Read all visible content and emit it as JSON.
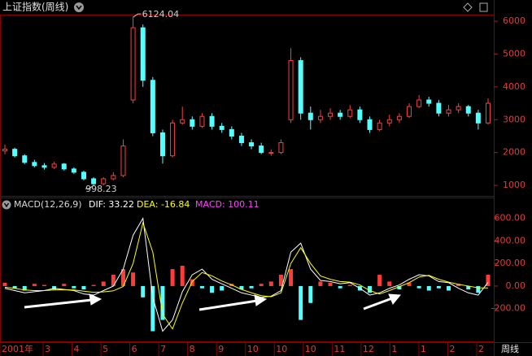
{
  "header": {
    "title": "上证指数(周线)"
  },
  "chart_data": [
    {
      "type": "candlestick",
      "up_color": "#ff3c3c",
      "down_color": "#54ffff",
      "ylim": [
        680,
        6200
      ],
      "yticks": [
        1000,
        2000,
        3000,
        4000,
        5000,
        6000
      ],
      "max_label": "6124.04",
      "min_label": "998.23",
      "open": [
        2050,
        2100,
        1900,
        1700,
        1600,
        1550,
        1650,
        1500,
        1400,
        1200,
        1050,
        1200,
        1300,
        3600,
        5800,
        4200,
        2600,
        1900,
        2900,
        3000,
        2800,
        3100,
        2800,
        2700,
        2500,
        2300,
        2200,
        2000,
        2000,
        3000,
        4800,
        3200,
        3000,
        3100,
        3200,
        3100,
        3300,
        3000,
        2700,
        2900,
        3000,
        3100,
        3400,
        3600,
        3500,
        3200,
        3300,
        3400,
        3200,
        2900
      ],
      "close": [
        2100,
        1900,
        1700,
        1600,
        1550,
        1650,
        1500,
        1400,
        1200,
        1050,
        1200,
        1300,
        2200,
        5800,
        4200,
        2600,
        1900,
        2900,
        3000,
        2800,
        3100,
        2800,
        2700,
        2500,
        2300,
        2200,
        2000,
        2000,
        2300,
        4800,
        3200,
        3000,
        3100,
        3200,
        3100,
        3300,
        3000,
        2700,
        2900,
        3000,
        3100,
        3400,
        3600,
        3500,
        3200,
        3300,
        3400,
        3200,
        2900,
        3500
      ],
      "high": [
        2250,
        2150,
        1950,
        1780,
        1680,
        1720,
        1680,
        1550,
        1450,
        1250,
        1250,
        1400,
        2400,
        6124.04,
        5900,
        4300,
        2700,
        3000,
        3400,
        3100,
        3200,
        3200,
        2900,
        2800,
        2600,
        2400,
        2300,
        2100,
        2400,
        5178,
        4900,
        3400,
        3300,
        3350,
        3300,
        3450,
        3400,
        3100,
        3000,
        3150,
        3200,
        3500,
        3750,
        3700,
        3600,
        3450,
        3500,
        3450,
        3300,
        3650
      ],
      "low": [
        1950,
        1850,
        1650,
        1550,
        1480,
        1500,
        1450,
        1350,
        1150,
        998.23,
        1000,
        1150,
        1250,
        3500,
        4000,
        2500,
        1664,
        1850,
        2850,
        2700,
        2750,
        2700,
        2600,
        2400,
        2200,
        2100,
        1950,
        1900,
        1950,
        2900,
        3000,
        2700,
        2900,
        3000,
        3000,
        3050,
        2900,
        2600,
        2650,
        2800,
        2900,
        3050,
        3350,
        3400,
        3100,
        3100,
        3200,
        3100,
        2700,
        2850
      ]
    },
    {
      "type": "macd",
      "title": "MACD(12,26,9)",
      "legend": [
        "DIF: 33.22",
        "DEA: -16.84",
        "MACD: 100.11"
      ],
      "legend_colors": [
        "#ffffff",
        "#ffff00",
        "#ff40ff"
      ],
      "ylim": [
        -490,
        770
      ],
      "yticks": [
        {
          "value": -200,
          "label": "-200.00"
        },
        {
          "value": 0,
          "label": "0.00"
        },
        {
          "value": 200,
          "label": "200.00"
        },
        {
          "value": 400,
          "label": "400.00"
        },
        {
          "value": 600,
          "label": "600.00"
        }
      ],
      "series": [
        {
          "color": "#ffffff",
          "values": [
            -20,
            -40,
            -60,
            -50,
            -40,
            -20,
            -30,
            -40,
            -70,
            -80,
            -40,
            0,
            150,
            450,
            600,
            -100,
            -400,
            -300,
            -50,
            100,
            150,
            60,
            20,
            -20,
            -60,
            -80,
            -100,
            -90,
            -40,
            300,
            380,
            150,
            50,
            40,
            20,
            30,
            -20,
            -80,
            -60,
            -20,
            10,
            60,
            100,
            90,
            40,
            30,
            -20,
            -60,
            -80,
            33.22
          ]
        },
        {
          "color": "#ffff00",
          "values": [
            -10,
            -20,
            -35,
            -40,
            -40,
            -35,
            -33,
            -35,
            -45,
            -55,
            -52,
            -42,
            -4,
            200,
            560,
            300,
            -250,
            -380,
            -150,
            40,
            120,
            90,
            45,
            10,
            -30,
            -60,
            -85,
            -95,
            -60,
            200,
            340,
            200,
            90,
            60,
            40,
            35,
            10,
            -40,
            -70,
            -40,
            -5,
            30,
            80,
            95,
            60,
            35,
            15,
            0,
            -16,
            -16.84
          ]
        },
        {
          "color": "#ff3c3c",
          "neg_color": "#54ffff",
          "values": [
            30,
            -20,
            -40,
            20,
            10,
            -30,
            20,
            -20,
            -30,
            10,
            40,
            100,
            150,
            120,
            -100,
            -400,
            -300,
            150,
            180,
            60,
            -20,
            -60,
            -40,
            20,
            -30,
            -20,
            20,
            40,
            100,
            150,
            -300,
            -150,
            40,
            30,
            -20,
            10,
            -40,
            -60,
            100,
            40,
            -30,
            30,
            -20,
            -40,
            -20,
            -40,
            20,
            -30,
            -60,
            100.11
          ]
        }
      ],
      "x_labels": [
        "2001年",
        "3",
        "4",
        "5",
        "6",
        "7",
        "8",
        "9",
        "10",
        "10",
        "10",
        "11",
        "12",
        "1",
        "1",
        "2",
        "2"
      ],
      "period": "周线"
    }
  ]
}
